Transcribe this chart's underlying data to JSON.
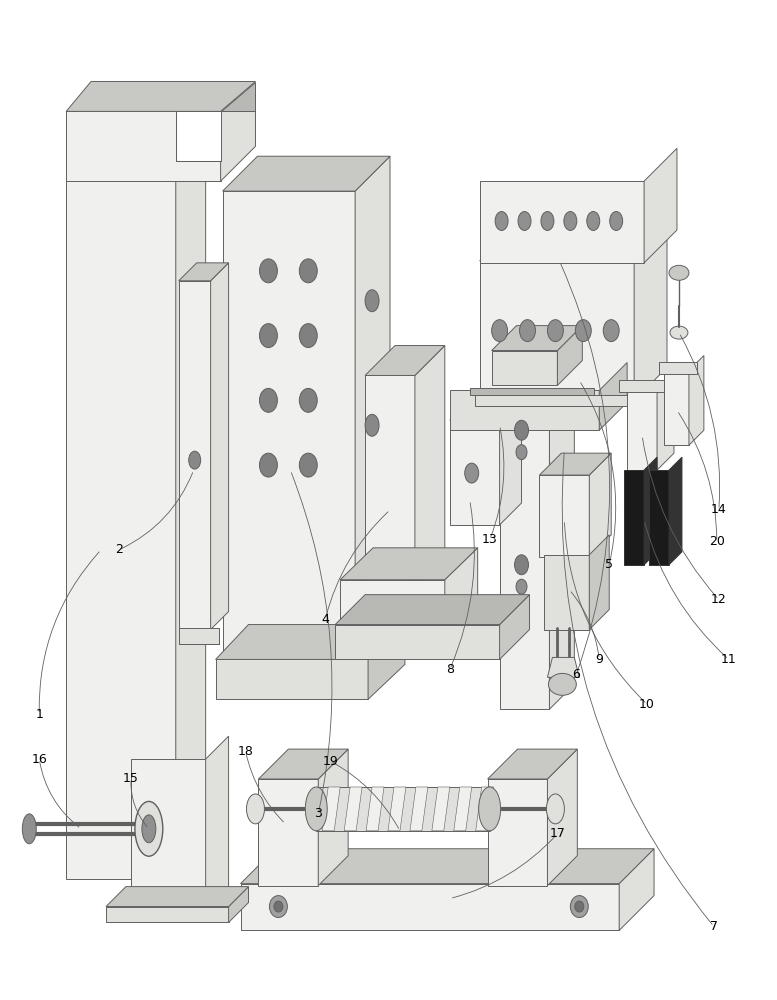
{
  "bg": "white",
  "lc": "#606060",
  "fc_light": "#f0f0ee",
  "fc_mid": "#e0e0dc",
  "fc_dark": "#c8c8c4",
  "fc_darker": "#b8b8b4",
  "black": "#1a1a1a",
  "lw": 0.7,
  "figw": 7.77,
  "figh": 10.0,
  "dpi": 100
}
